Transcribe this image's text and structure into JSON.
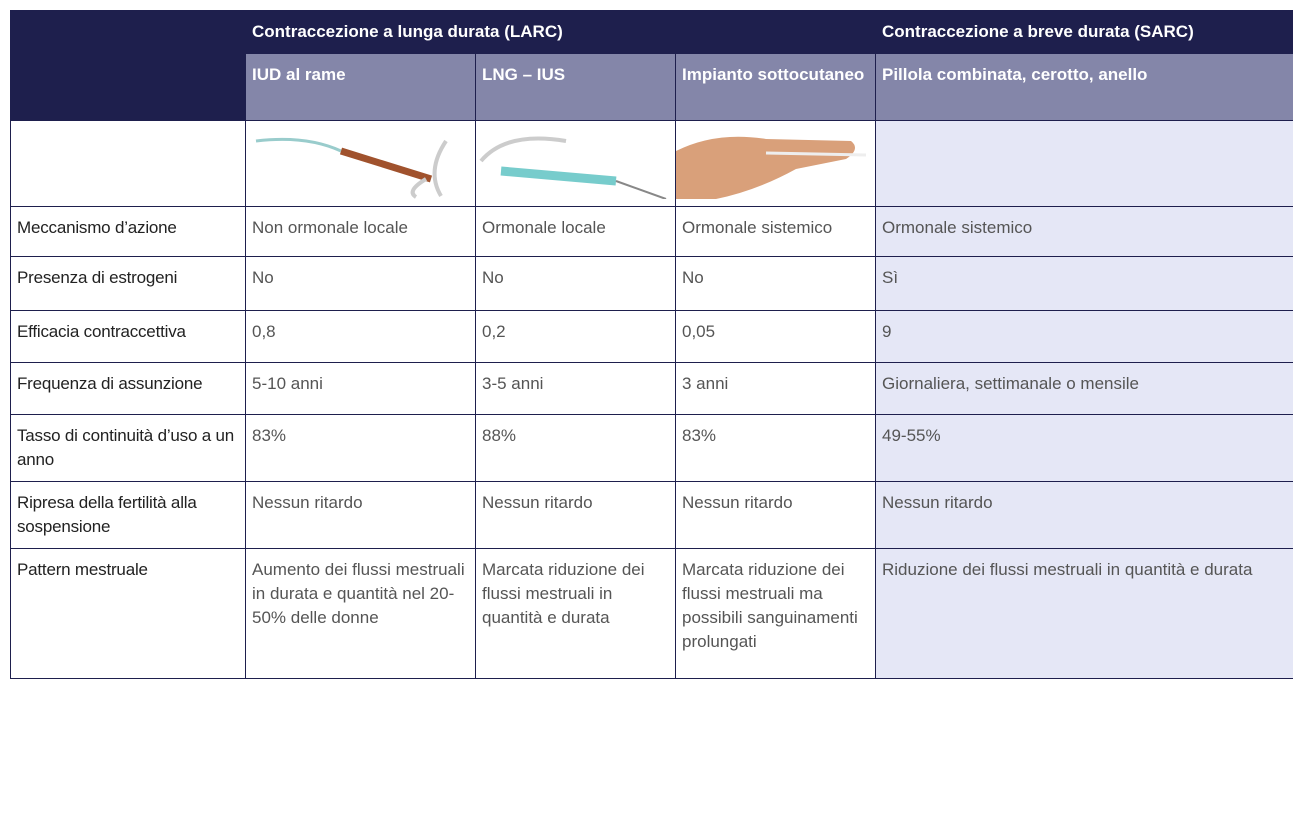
{
  "table": {
    "groups": [
      "Contraccezione a lunga durata (LARC)",
      "Contraccezione a breve durata (SARC)"
    ],
    "columns": [
      "IUD al rame",
      "LNG – IUS",
      "Impianto sottocutaneo",
      "Pillola combinata, cerotto, anello"
    ],
    "rows": [
      {
        "label": "Meccanismo d’azione",
        "cells": [
          "Non ormonale locale",
          "Ormonale locale",
          "Ormonale sistemico",
          "Ormonale sistemico"
        ]
      },
      {
        "label": "Presenza di estrogeni",
        "cells": [
          "No",
          "No",
          "No",
          "Sì"
        ]
      },
      {
        "label": "Efficacia contraccettiva",
        "cells": [
          "0,8",
          "0,2",
          "0,05",
          "9"
        ]
      },
      {
        "label": "Frequenza di assunzione",
        "cells": [
          "5-10 anni",
          "3-5 anni",
          "3 anni",
          "Giornaliera, settimanale o mensile"
        ]
      },
      {
        "label": "Tasso di continuità d’uso a un anno",
        "cells": [
          "83%",
          "88%",
          "83%",
          "49-55%"
        ]
      },
      {
        "label": "Ripresa della fertilità alla sospensione",
        "cells": [
          "Nessun ritardo",
          "Nessun ritardo",
          "Nessun ritardo",
          "Nessun ritardo"
        ]
      },
      {
        "label": "Pattern mestruale",
        "cells": [
          "Aumento dei flussi mestruali in durata e quantità nel 20-50% delle donne",
          "Marcata riduzione dei flussi mestruali in quantità e durata",
          "Marcata riduzione dei flussi mestruali ma possibili sanguinamenti prolungati",
          "Riduzione dei flussi mestruali in quantità e durata"
        ]
      }
    ]
  }
}
